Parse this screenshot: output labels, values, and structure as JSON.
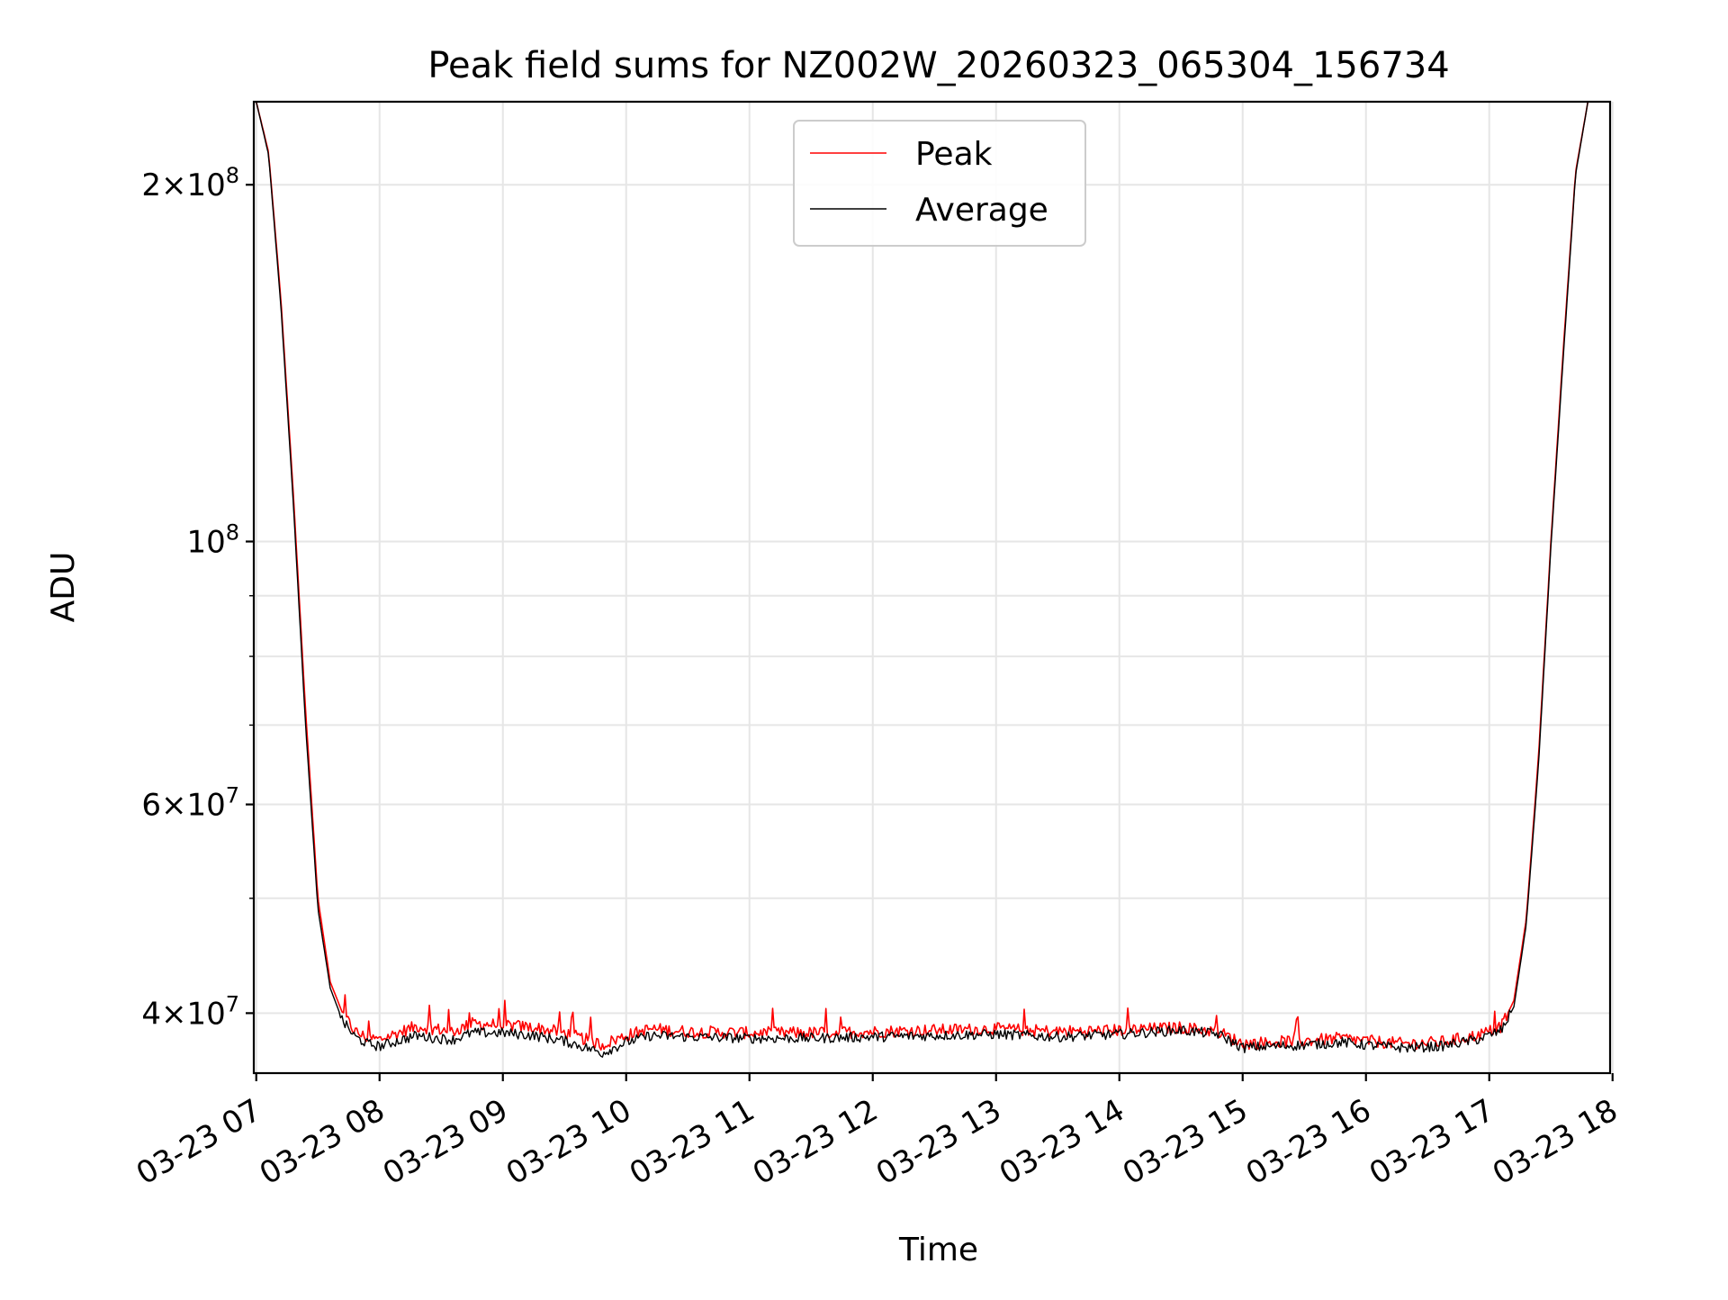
{
  "chart_data": {
    "type": "line",
    "title": "Peak field sums for NZ002W_20260323_065304_156734",
    "xlabel": "Time",
    "ylabel": "ADU",
    "yscale": "log",
    "ylim": [
      35600000,
      235000000
    ],
    "grid": true,
    "legend_position": "top-center",
    "x_tick_labels": [
      "03-23 07",
      "03-23 08",
      "03-23 09",
      "03-23 10",
      "03-23 11",
      "03-23 12",
      "03-23 13",
      "03-23 14",
      "03-23 15",
      "03-23 16",
      "03-23 17",
      "03-23 18"
    ],
    "x_tick_values": [
      7,
      8,
      9,
      10,
      11,
      12,
      13,
      14,
      15,
      16,
      17,
      18
    ],
    "xlim": [
      6.98,
      17.98
    ],
    "y_major_ticks": [
      {
        "value": 40000000,
        "mantissa": "4",
        "exponent": "7"
      },
      {
        "value": 60000000,
        "mantissa": "6",
        "exponent": "7"
      },
      {
        "value": 100000000,
        "mantissa": "",
        "exponent": "8"
      },
      {
        "value": 200000000,
        "mantissa": "2",
        "exponent": "8"
      }
    ],
    "y_minor_ticks": [
      50000000,
      70000000,
      80000000,
      90000000
    ],
    "series": [
      {
        "name": "Peak",
        "color": "#ff0000",
        "x": [
          7.0,
          7.1,
          7.2,
          7.3,
          7.4,
          7.5,
          7.6,
          7.7,
          7.8,
          7.9,
          8.0,
          8.15,
          8.3,
          8.45,
          8.6,
          8.75,
          9.0,
          9.25,
          9.5,
          9.75,
          9.8,
          10.0,
          10.2,
          10.5,
          11.0,
          11.5,
          12.0,
          12.5,
          13.0,
          13.5,
          14.0,
          14.5,
          14.8,
          15.0,
          15.2,
          15.5,
          15.8,
          16.0,
          16.3,
          16.6,
          16.9,
          17.0,
          17.1,
          17.2,
          17.3,
          17.4,
          17.5,
          17.6,
          17.7,
          17.8
        ],
        "values": [
          235000000,
          213000000,
          160000000,
          110000000,
          72000000,
          50000000,
          42500000,
          40000000,
          38600000,
          38100000,
          38000000,
          38500000,
          39000000,
          38800000,
          38600000,
          39200000,
          39100000,
          38900000,
          38500000,
          37800000,
          37600000,
          38300000,
          38800000,
          38600000,
          38500000,
          38500000,
          38600000,
          38700000,
          38800000,
          38600000,
          38700000,
          38900000,
          38600000,
          37700000,
          37800000,
          37900000,
          38100000,
          37900000,
          37700000,
          37800000,
          38300000,
          38600000,
          39000000,
          41000000,
          48000000,
          66000000,
          100000000,
          145000000,
          205000000,
          235000000
        ]
      },
      {
        "name": "Average",
        "color": "#000000",
        "x": [
          7.0,
          7.1,
          7.2,
          7.3,
          7.4,
          7.5,
          7.6,
          7.7,
          7.8,
          7.9,
          8.0,
          8.15,
          8.3,
          8.45,
          8.6,
          8.75,
          9.0,
          9.25,
          9.5,
          9.75,
          9.8,
          10.0,
          10.2,
          10.5,
          11.0,
          11.5,
          12.0,
          12.5,
          13.0,
          13.5,
          14.0,
          14.5,
          14.8,
          15.0,
          15.2,
          15.5,
          15.8,
          16.0,
          16.3,
          16.6,
          16.9,
          17.0,
          17.1,
          17.2,
          17.3,
          17.4,
          17.5,
          17.6,
          17.7,
          17.8
        ],
        "values": [
          235000000,
          212000000,
          158000000,
          108000000,
          70000000,
          49000000,
          42000000,
          39400000,
          38200000,
          37700000,
          37500000,
          37900000,
          38300000,
          38100000,
          38000000,
          38500000,
          38500000,
          38300000,
          37900000,
          37200000,
          37000000,
          37800000,
          38300000,
          38200000,
          38100000,
          38100000,
          38200000,
          38300000,
          38400000,
          38200000,
          38400000,
          38700000,
          38400000,
          37400000,
          37500000,
          37600000,
          37800000,
          37600000,
          37400000,
          37500000,
          38000000,
          38300000,
          38700000,
          40500000,
          47500000,
          65000000,
          99000000,
          143000000,
          204000000,
          235000000
        ]
      }
    ]
  }
}
